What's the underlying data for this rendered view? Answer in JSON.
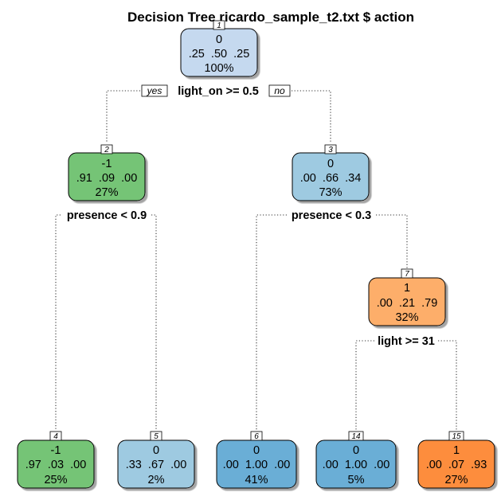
{
  "title": "Decision Tree ricardo_sample_t2.txt $ action",
  "nodes": {
    "n1": {
      "id": "1",
      "class": "0",
      "probs": ".25  .50  .25",
      "pct": "100%",
      "fill": "#c5d9ef"
    },
    "n2": {
      "id": "2",
      "class": "-1",
      "probs": ".91  .09  .00",
      "pct": "27%",
      "fill": "#74c476"
    },
    "n3": {
      "id": "3",
      "class": "0",
      "probs": ".00  .66  .34",
      "pct": "73%",
      "fill": "#9ecae1"
    },
    "n4": {
      "id": "4",
      "class": "-1",
      "probs": ".97  .03  .00",
      "pct": "25%",
      "fill": "#74c476"
    },
    "n5": {
      "id": "5",
      "class": "0",
      "probs": ".33  .67  .00",
      "pct": "2%",
      "fill": "#9ecae1"
    },
    "n6": {
      "id": "6",
      "class": "0",
      "probs": ".00  1.00  .00",
      "pct": "41%",
      "fill": "#6baed6"
    },
    "n7": {
      "id": "7",
      "class": "1",
      "probs": ".00  .21  .79",
      "pct": "32%",
      "fill": "#fdae6b"
    },
    "n14": {
      "id": "14",
      "class": "0",
      "probs": ".00  1.00  .00",
      "pct": "5%",
      "fill": "#6baed6"
    },
    "n15": {
      "id": "15",
      "class": "1",
      "probs": ".00  .07  .93",
      "pct": "27%",
      "fill": "#fd8d3c"
    }
  },
  "splits": {
    "s1": "light_on >= 0.5",
    "s2": "presence < 0.9",
    "s3": "presence < 0.3",
    "s7": "light >= 31"
  },
  "branch_labels": {
    "yes": "yes",
    "no": "no"
  }
}
